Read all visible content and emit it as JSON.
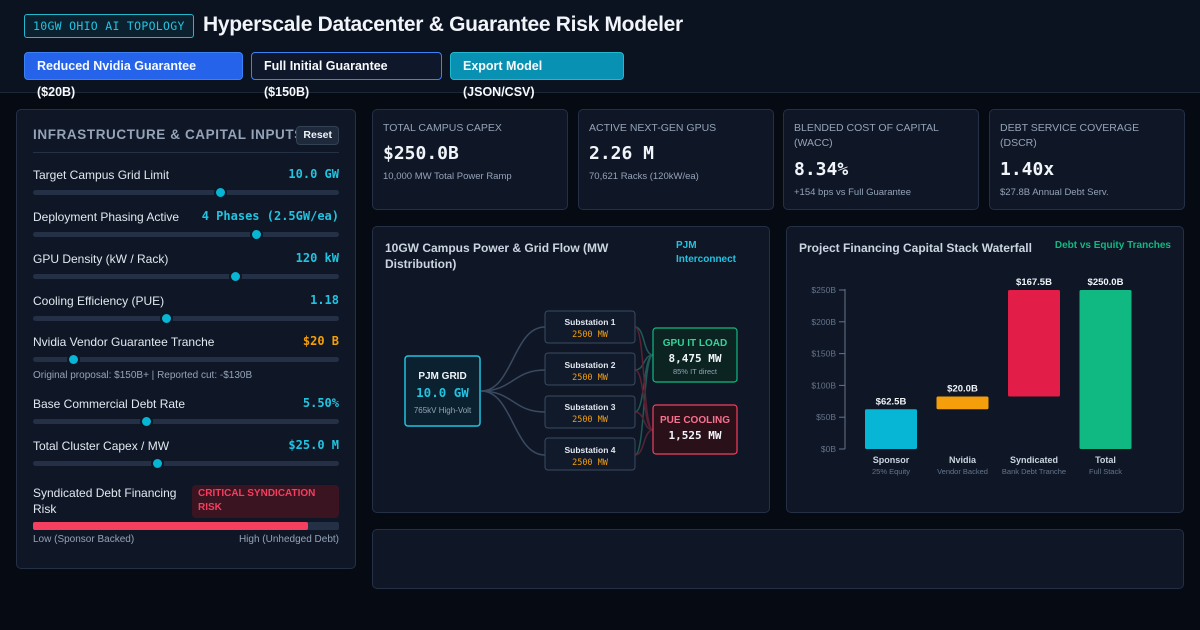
{
  "header": {
    "badge": "10GW OHIO AI TOPOLOGY",
    "title": "Hyperscale Datacenter & Guarantee Risk Modeler",
    "buttons": {
      "reduced": "Reduced Nvidia Guarantee ($20B)",
      "full": "Full Initial Guarantee ($150B)",
      "export": "Export Model (JSON/CSV)"
    }
  },
  "inputs": {
    "title": "INFRASTRUCTURE & CAPITAL INPUTS",
    "reset": "Reset",
    "controls": [
      {
        "label": "Target Campus Grid Limit",
        "value": "10.0 GW",
        "level": 0.61
      },
      {
        "label": "Deployment Phasing Active",
        "value": "4 Phases (2.5GW/ea)",
        "level": 0.73
      },
      {
        "label": "GPU Density (kW / Rack)",
        "value": "120 kW",
        "level": 0.66
      },
      {
        "label": "Cooling Efficiency (PUE)",
        "value": "1.18",
        "level": 0.435
      },
      {
        "label": "Nvidia Vendor Guarantee Tranche",
        "value": "$20 B",
        "level": 0.13,
        "note": "Original proposal: $150B+ | Reported cut: -$130B"
      },
      {
        "label": "Base Commercial Debt Rate",
        "value": "5.50%",
        "level": 0.37
      },
      {
        "label": "Total Cluster Capex / MW",
        "value": "$25.0 M",
        "level": 0.405
      }
    ],
    "risk": {
      "label": "Syndicated Debt Financing Risk",
      "badge": "CRITICAL SYNDICATION RISK",
      "level": 0.9,
      "low_label": "Low (Sponsor Backed)",
      "high_label": "High (Unhedged Debt)"
    }
  },
  "kpis": [
    {
      "label": "TOTAL CAMPUS CAPEX",
      "value": "$250.0B",
      "sub": "10,000 MW Total Power Ramp"
    },
    {
      "label": "ACTIVE NEXT-GEN GPUS",
      "value": "2.26 M",
      "sub": "70,621 Racks (120kW/ea)"
    },
    {
      "label": "BLENDED COST OF CAPITAL (WACC)",
      "value": "8.34%",
      "sub": "+154 bps vs Full Guarantee"
    },
    {
      "label": "DEBT SERVICE COVERAGE (DSCR)",
      "value": "1.40x",
      "sub": "$27.8B Annual Debt Serv."
    }
  ],
  "grid_flow": {
    "title": "10GW Campus Power & Grid Flow (MW Distribution)",
    "tag": "PJM Interconnect",
    "source": {
      "name": "PJM GRID",
      "value": "10.0 GW",
      "sub": "765kV High-Volt"
    },
    "substations": [
      {
        "name": "Substation 1",
        "value": "2500 MW"
      },
      {
        "name": "Substation 2",
        "value": "2500 MW"
      },
      {
        "name": "Substation 3",
        "value": "2500 MW"
      },
      {
        "name": "Substation 4",
        "value": "2500 MW"
      }
    ],
    "gpu_load": {
      "name": "GPU IT LOAD",
      "value": "8,475 MW",
      "sub": "85% IT direct"
    },
    "cooling": {
      "name": "PUE COOLING",
      "value": "1,525 MW"
    },
    "colors": {
      "grid": "#22c3e0",
      "gpu": "#10b981",
      "cooling": "#f43f5e",
      "sub": "#f59e0b"
    }
  },
  "chart_data": {
    "type": "bar",
    "title": "Project Financing Capital Stack Waterfall",
    "tag": "Debt vs Equity Tranches",
    "ylim": [
      0,
      250
    ],
    "yticks": [
      {
        "v": 0,
        "label": "$0B"
      },
      {
        "v": 50,
        "label": "$50B"
      },
      {
        "v": 100,
        "label": "$100B"
      },
      {
        "v": 150,
        "label": "$150B"
      },
      {
        "v": 200,
        "label": "$200B"
      },
      {
        "v": 250,
        "label": "$250B"
      }
    ],
    "bars": [
      {
        "name": "Sponsor",
        "sub": "25% Equity",
        "start": 0,
        "end": 62.5,
        "label": "$62.5B",
        "color": "#06b6d4"
      },
      {
        "name": "Nvidia",
        "sub": "Vendor Backed",
        "start": 62.5,
        "end": 82.5,
        "label": "$20.0B",
        "color": "#f59e0b"
      },
      {
        "name": "Syndicated",
        "sub": "Bank Debt Tranche",
        "start": 82.5,
        "end": 250,
        "label": "$167.5B",
        "color": "#e11d48"
      },
      {
        "name": "Total",
        "sub": "Full Stack",
        "start": 0,
        "end": 250,
        "label": "$250.0B",
        "color": "#10b981"
      }
    ]
  }
}
